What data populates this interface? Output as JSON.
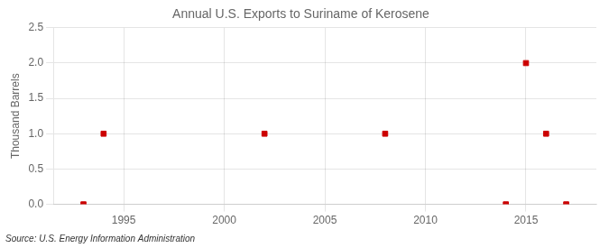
{
  "chart_data": {
    "type": "scatter",
    "title": "Annual U.S. Exports to Suriname of Kerosene",
    "ylabel": "Thousand Barrels",
    "source": "Source: U.S. Energy Information Administration",
    "x": [
      1993,
      1994,
      2002,
      2008,
      2014,
      2015,
      2016,
      2017
    ],
    "values": [
      0,
      1,
      1,
      1,
      0,
      2,
      1,
      0
    ],
    "color": "#cc0000",
    "marker": "square",
    "xlim": [
      1991.5,
      2018.5
    ],
    "ylim": [
      0,
      2.5
    ],
    "xticks": [
      1995,
      2000,
      2005,
      2010,
      2015
    ],
    "yticks": [
      {
        "value": 0,
        "label": "0.0"
      },
      0.5,
      {
        "value": 1,
        "label": "1.0"
      },
      1.5,
      {
        "value": 2,
        "label": "2.0"
      },
      2.5
    ],
    "grid": true
  }
}
